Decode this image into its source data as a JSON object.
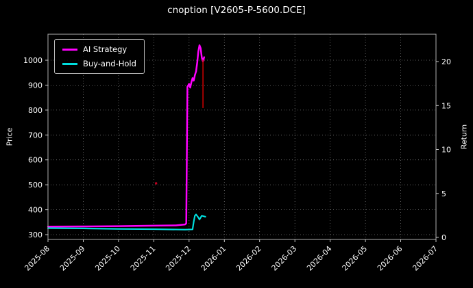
{
  "chart_data": {
    "type": "line",
    "title": "cnoption [V2605-P-5600.DCE]",
    "background_color": "#000000",
    "text_color": "#ffffff",
    "grid": {
      "visible": true,
      "style": "dotted",
      "color": "#787878"
    },
    "x_axis": {
      "tick_labels": [
        "2025-08",
        "2025-09",
        "2025-10",
        "2025-11",
        "2025-12",
        "2026-01",
        "2026-02",
        "2026-03",
        "2026-04",
        "2026-05",
        "2026-06",
        "2026-07"
      ],
      "tick_rotation_deg": 45
    },
    "left_axis": {
      "label": "Price",
      "ticks": [
        300,
        400,
        500,
        600,
        700,
        800,
        900,
        1000
      ],
      "range": [
        281,
        1104
      ]
    },
    "right_axis": {
      "label": "Return",
      "ticks": [
        0,
        5,
        10,
        15,
        20
      ],
      "range": [
        -0.6,
        23.1
      ]
    },
    "legend": {
      "position": "upper-left",
      "entries": [
        {
          "label": "AI Strategy",
          "color": "#ff00ff"
        },
        {
          "label": "Buy-and-Hold",
          "color": "#00dddd"
        }
      ]
    },
    "series": [
      {
        "name": "AI Strategy",
        "color": "#ff00ff",
        "width": 2.5,
        "axis": "left",
        "points": [
          [
            "2025-08-01",
            332
          ],
          [
            "2025-09-01",
            333
          ],
          [
            "2025-10-01",
            334
          ],
          [
            "2025-11-01",
            336
          ],
          [
            "2025-11-20",
            337
          ],
          [
            "2025-11-28",
            341
          ],
          [
            "2025-11-29",
            345
          ],
          [
            "2025-11-30",
            893
          ],
          [
            "2025-12-01",
            905
          ],
          [
            "2025-12-02",
            890
          ],
          [
            "2025-12-03",
            912
          ],
          [
            "2025-12-04",
            928
          ],
          [
            "2025-12-05",
            918
          ],
          [
            "2025-12-06",
            940
          ],
          [
            "2025-12-07",
            955
          ],
          [
            "2025-12-08",
            990
          ],
          [
            "2025-12-09",
            1035
          ],
          [
            "2025-12-10",
            1060
          ],
          [
            "2025-12-11",
            1048
          ],
          [
            "2025-12-12",
            1010
          ],
          [
            "2025-12-13",
            995
          ],
          [
            "2025-12-14",
            1012
          ]
        ]
      },
      {
        "name": "Buy-and-Hold",
        "color": "#00dddd",
        "width": 2.2,
        "axis": "left",
        "points": [
          [
            "2025-08-01",
            326
          ],
          [
            "2025-09-01",
            325
          ],
          [
            "2025-10-01",
            323
          ],
          [
            "2025-11-01",
            322
          ],
          [
            "2025-11-28",
            320
          ],
          [
            "2025-12-04",
            321
          ],
          [
            "2025-12-05",
            352
          ],
          [
            "2025-12-06",
            376
          ],
          [
            "2025-12-07",
            381
          ],
          [
            "2025-12-09",
            369
          ],
          [
            "2025-12-10",
            361
          ],
          [
            "2025-12-12",
            376
          ],
          [
            "2025-12-15",
            372
          ]
        ]
      }
    ],
    "annotations": [
      {
        "type": "vline-segment",
        "x": "2025-12-13",
        "y1": 1002,
        "y2": 808,
        "color": "#d40000"
      },
      {
        "type": "dot",
        "x": "2025-11-03",
        "y": 506,
        "color": "#c00020"
      }
    ]
  }
}
